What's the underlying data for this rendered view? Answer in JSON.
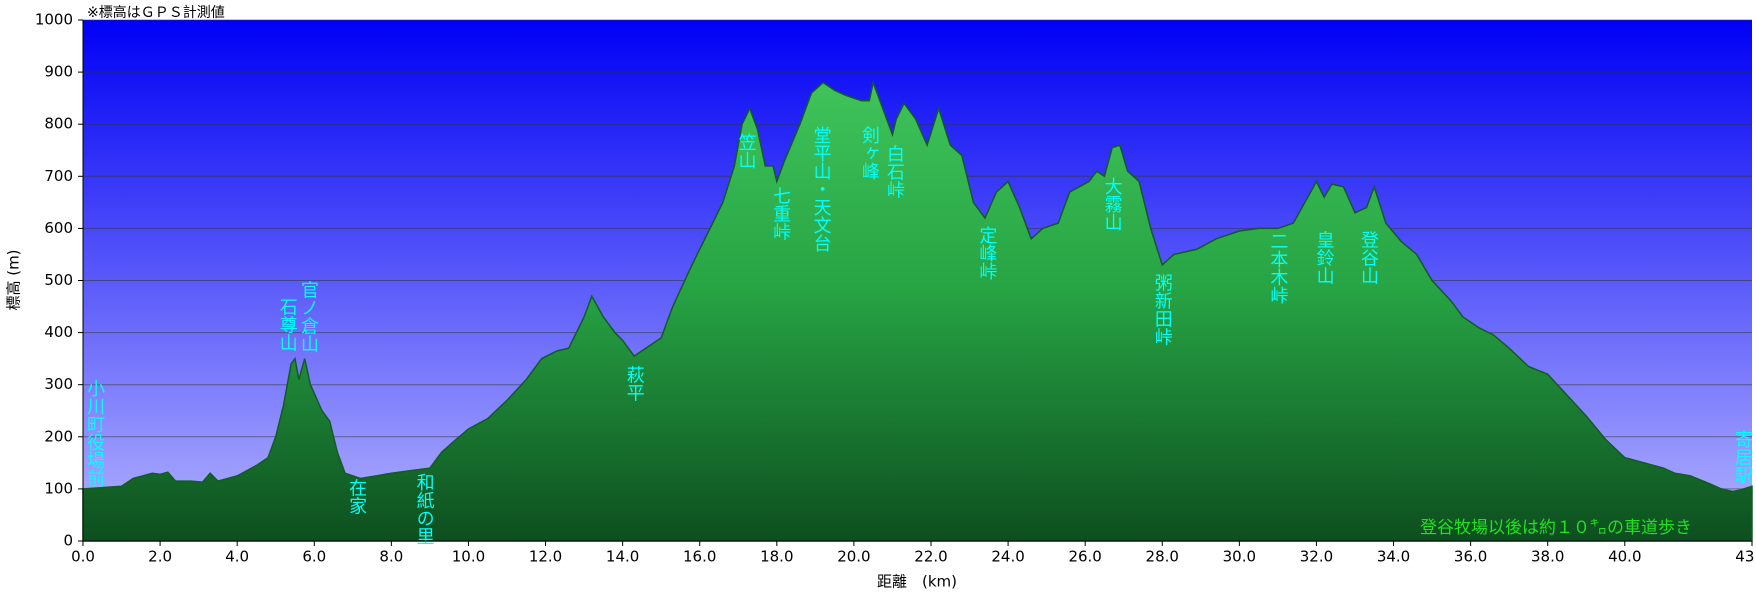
{
  "chart_data": {
    "type": "area",
    "note": "※標高はＧＰＳ計測値",
    "footnote": "登谷牧場以後は約１０㌔の車道歩き",
    "ylabel": "標高 (m)",
    "xlabel": "距離　(km)",
    "xlim": [
      0,
      43.3
    ],
    "ylim": [
      0,
      1000
    ],
    "yticks": [
      0,
      100,
      200,
      300,
      400,
      500,
      600,
      700,
      800,
      900,
      1000
    ],
    "xticks": [
      {
        "value": 0,
        "label": "0.0"
      },
      {
        "value": 2,
        "label": "2.0"
      },
      {
        "value": 4,
        "label": "4.0"
      },
      {
        "value": 6,
        "label": "6.0"
      },
      {
        "value": 8,
        "label": "8.0"
      },
      {
        "value": 10,
        "label": "10.0"
      },
      {
        "value": 12,
        "label": "12.0"
      },
      {
        "value": 14,
        "label": "14.0"
      },
      {
        "value": 16,
        "label": "16.0"
      },
      {
        "value": 18,
        "label": "18.0"
      },
      {
        "value": 20,
        "label": "20.0"
      },
      {
        "value": 22,
        "label": "22.0"
      },
      {
        "value": 24,
        "label": "24.0"
      },
      {
        "value": 26,
        "label": "26.0"
      },
      {
        "value": 28,
        "label": "28.0"
      },
      {
        "value": 30,
        "label": "30.0"
      },
      {
        "value": 32,
        "label": "32.0"
      },
      {
        "value": 34,
        "label": "34.0"
      },
      {
        "value": 36,
        "label": "36.0"
      },
      {
        "value": 38,
        "label": "38.0"
      },
      {
        "value": 40,
        "label": "40.0"
      },
      43.3
    ],
    "grid": true,
    "color": "#2aa845",
    "x": [
      0,
      1.0,
      1.3,
      1.8,
      2.0,
      2.2,
      2.4,
      2.8,
      3.1,
      3.3,
      3.5,
      4.0,
      4.5,
      4.8,
      5.0,
      5.2,
      5.4,
      5.5,
      5.6,
      5.75,
      5.9,
      6.2,
      6.4,
      6.6,
      6.8,
      7.2,
      8.0,
      8.5,
      9.0,
      9.3,
      9.6,
      10.0,
      10.5,
      11.0,
      11.5,
      11.9,
      12.3,
      12.6,
      13.0,
      13.2,
      13.5,
      13.8,
      14.0,
      14.3,
      14.6,
      15.0,
      15.3,
      15.8,
      16.2,
      16.6,
      16.9,
      17.1,
      17.3,
      17.5,
      17.7,
      17.9,
      18.0,
      18.2,
      18.6,
      18.9,
      19.2,
      19.5,
      19.8,
      20.2,
      20.4,
      20.5,
      20.7,
      21.0,
      21.1,
      21.3,
      21.6,
      21.9,
      22.2,
      22.5,
      22.8,
      23.1,
      23.4,
      23.7,
      24.0,
      24.3,
      24.6,
      24.9,
      25.3,
      25.6,
      26.1,
      26.3,
      26.5,
      26.7,
      26.9,
      27.1,
      27.4,
      27.7,
      28.0,
      28.3,
      28.9,
      29.4,
      30.0,
      30.5,
      31.0,
      31.4,
      31.7,
      32.0,
      32.2,
      32.4,
      32.7,
      33.0,
      33.3,
      33.5,
      33.8,
      34.2,
      34.6,
      35.0,
      35.5,
      35.8,
      36.2,
      36.6,
      37.0,
      37.5,
      38.0,
      38.5,
      39.0,
      39.5,
      40.0,
      40.5,
      41.0,
      41.3,
      41.7,
      42.2,
      42.5,
      42.8,
      43.0,
      43.3
    ],
    "values": [
      100,
      105,
      120,
      130,
      128,
      132,
      115,
      115,
      113,
      130,
      115,
      125,
      145,
      160,
      200,
      260,
      340,
      350,
      310,
      350,
      300,
      250,
      230,
      170,
      130,
      120,
      130,
      135,
      140,
      170,
      190,
      215,
      235,
      270,
      310,
      350,
      365,
      370,
      430,
      470,
      430,
      400,
      385,
      355,
      370,
      390,
      450,
      530,
      590,
      650,
      720,
      800,
      830,
      790,
      720,
      720,
      690,
      730,
      800,
      860,
      880,
      865,
      855,
      845,
      845,
      880,
      840,
      780,
      810,
      840,
      810,
      760,
      830,
      760,
      740,
      650,
      620,
      670,
      690,
      640,
      580,
      600,
      610,
      670,
      690,
      710,
      700,
      755,
      760,
      710,
      690,
      600,
      530,
      550,
      560,
      580,
      595,
      600,
      600,
      610,
      650,
      690,
      660,
      685,
      680,
      630,
      640,
      680,
      610,
      575,
      550,
      500,
      460,
      430,
      410,
      395,
      370,
      335,
      320,
      280,
      240,
      195,
      160,
      150,
      140,
      130,
      125,
      110,
      100,
      95,
      98,
      105
    ],
    "annotations": [
      "小川町役場前",
      "石尊山",
      "官ノ倉山",
      "在家",
      "和紙の里",
      "萩平",
      "笠山",
      "七重峠",
      "堂平山・天文台",
      "剣ヶ峰",
      "白石峠",
      "定峰峠",
      "大霧山",
      "粥新田峠",
      "二本木峠",
      "皇鈴山",
      "登谷山",
      "寄居駅"
    ]
  }
}
